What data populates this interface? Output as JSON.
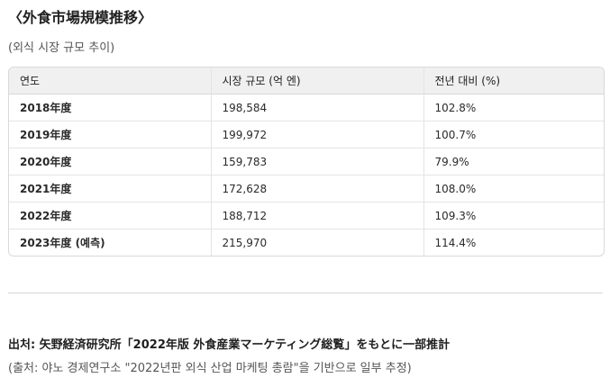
{
  "title": "〈外食市場規模推移〉",
  "subtitle": "(외식 시장 규모 추이)",
  "table": {
    "headers": [
      "연도",
      "시장 규모 (억 엔)",
      "전년 대비 (%)"
    ],
    "rows": [
      {
        "year": "2018年度",
        "size": "198,584",
        "change": "102.8%"
      },
      {
        "year": "2019年度",
        "size": "199,972",
        "change": "100.7%"
      },
      {
        "year": "2020年度",
        "size": "159,783",
        "change": "79.9%"
      },
      {
        "year": "2021年度",
        "size": "172,628",
        "change": "108.0%"
      },
      {
        "year": "2022年度",
        "size": "188,712",
        "change": "109.3%"
      },
      {
        "year": "2023年度 (예측)",
        "size": "215,970",
        "change": "114.4%"
      }
    ]
  },
  "source": {
    "japanese": "出처: 矢野経済研究所「2022年版 外食産業マーケティング総覧」をもとに一部推計",
    "korean": "(출처: 야노 경제연구소 \"2022년판 외식 산업 마케팅 총람\"을 기반으로 일부 추정)"
  }
}
